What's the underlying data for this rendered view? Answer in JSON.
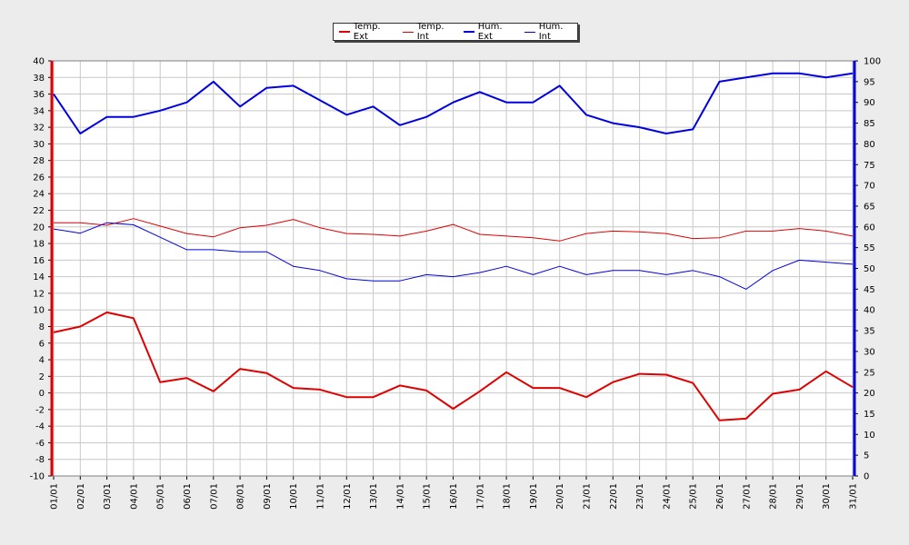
{
  "chart_data": {
    "type": "line",
    "categories": [
      "01/01",
      "02/01",
      "03/01",
      "04/01",
      "05/01",
      "06/01",
      "07/01",
      "08/01",
      "09/01",
      "10/01",
      "11/01",
      "12/01",
      "13/01",
      "14/01",
      "15/01",
      "16/01",
      "17/01",
      "18/01",
      "19/01",
      "20/01",
      "21/01",
      "22/01",
      "23/01",
      "24/01",
      "25/01",
      "26/01",
      "27/01",
      "28/01",
      "29/01",
      "30/01",
      "31/01"
    ],
    "y_left": {
      "min": -10,
      "max": 40,
      "step": 2
    },
    "y_right": {
      "min": 0,
      "max": 100,
      "step": 5
    },
    "grid": true,
    "legend_position": "top-center",
    "series": [
      {
        "name": "Temp. Ext",
        "axis": "left",
        "color": "#e00000",
        "width": 2,
        "values": [
          7.3,
          8.0,
          9.7,
          9.0,
          1.3,
          1.8,
          0.2,
          2.9,
          2.4,
          0.6,
          0.4,
          -0.5,
          -0.5,
          0.9,
          0.3,
          -1.9,
          0.2,
          2.5,
          0.6,
          0.6,
          -0.5,
          1.3,
          2.3,
          2.2,
          1.2,
          -3.3,
          -3.1,
          -0.1,
          0.4,
          2.6,
          0.7
        ]
      },
      {
        "name": "Temp. Int",
        "axis": "left",
        "color": "#e00000",
        "width": 1,
        "values": [
          20.5,
          20.5,
          20.2,
          21.0,
          20.1,
          19.2,
          18.8,
          19.9,
          20.2,
          20.9,
          19.9,
          19.2,
          19.1,
          18.9,
          19.5,
          20.3,
          19.1,
          18.9,
          18.7,
          18.3,
          19.2,
          19.5,
          19.4,
          19.2,
          18.6,
          18.7,
          19.5,
          19.5,
          19.8,
          19.5,
          18.9
        ]
      },
      {
        "name": "Hum. Ext",
        "axis": "right",
        "color": "#0000e0",
        "width": 2,
        "values": [
          92,
          82.5,
          86.5,
          86.5,
          88,
          90,
          95,
          89,
          93.5,
          94,
          90.5,
          87,
          89,
          84.5,
          86.5,
          90,
          92.5,
          90,
          90,
          94,
          87,
          85,
          84,
          82.5,
          83.5,
          95,
          96,
          97,
          97,
          96,
          97
        ]
      },
      {
        "name": "Hum. Int",
        "axis": "right",
        "color": "#0000e0",
        "width": 1,
        "values": [
          59.5,
          58.5,
          61,
          60.5,
          57.5,
          54.5,
          54.5,
          54,
          54,
          50.5,
          49.5,
          47.5,
          47,
          47,
          48.5,
          48,
          49,
          50.5,
          48.5,
          50.5,
          48.5,
          49.5,
          49.5,
          48.5,
          49.5,
          48,
          45,
          49.5,
          52,
          51.5,
          51
        ]
      }
    ]
  },
  "legend": {
    "items": [
      {
        "label": "Temp. Ext",
        "color": "#e00000",
        "width": 2
      },
      {
        "label": "Temp. Int",
        "color": "#e00000",
        "width": 1
      },
      {
        "label": "Hum. Ext",
        "color": "#0000e0",
        "width": 2
      },
      {
        "label": "Hum. Int",
        "color": "#0000e0",
        "width": 1
      }
    ]
  }
}
